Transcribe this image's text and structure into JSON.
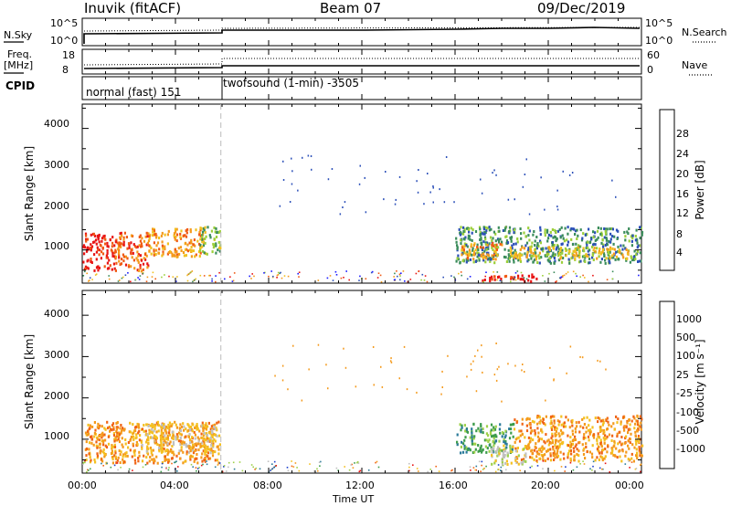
{
  "header": {
    "station": "Inuvik (fitACF)",
    "beam": "Beam 07",
    "date": "09/Dec/2019"
  },
  "panels": {
    "nsky": {
      "label": "N.Sky",
      "ticks": [
        "10^5",
        "10^0"
      ],
      "right_label": "N.Search",
      "right_ticks": [
        "10^5",
        "10^0"
      ]
    },
    "freq": {
      "label_line1": "Freq.",
      "label_line2": "[MHz]",
      "ticks": [
        "18",
        "8"
      ],
      "right_label": "Nave",
      "right_ticks": [
        "60",
        "0"
      ]
    },
    "cpid": {
      "label": "CPID",
      "segments": [
        "normal (fast) 151",
        "twofsound (1-min) -3505"
      ]
    }
  },
  "chart_data": [
    {
      "type": "heatmap",
      "name": "power",
      "ylabel": "Slant Range [km]",
      "xlabel": "",
      "ylim": [
        180,
        4600
      ],
      "yticks": [
        "1000",
        "2000",
        "3000",
        "4000"
      ],
      "colorbar": {
        "label": "Power [dB]",
        "ticks": [
          "4",
          "8",
          "12",
          "16",
          "20",
          "24",
          "28"
        ],
        "colors": [
          "#1a1aff",
          "#2b4fb8",
          "#3a8c5a",
          "#9ccf3a",
          "#f0c020",
          "#f49a1c",
          "#f05a14",
          "#e81414"
        ]
      },
      "regions": [
        {
          "t0": 0.0,
          "t1": 1.4,
          "r0": 500,
          "r1": 1450,
          "level": 7
        },
        {
          "t0": 1.4,
          "t1": 2.8,
          "r0": 500,
          "r1": 1450,
          "level": 6
        },
        {
          "t0": 2.8,
          "t1": 5.2,
          "r0": 850,
          "r1": 1550,
          "level": 5
        },
        {
          "t0": 5.0,
          "t1": 5.9,
          "r0": 900,
          "r1": 1600,
          "level": 3
        },
        {
          "t0": 16.0,
          "t1": 24.0,
          "r0": 700,
          "r1": 1600,
          "level": 2
        },
        {
          "t0": 16.2,
          "t1": 18.0,
          "r0": 800,
          "r1": 1200,
          "level": 5
        },
        {
          "t0": 18.3,
          "t1": 23.4,
          "r0": 800,
          "r1": 1100,
          "level": 4
        },
        {
          "t0": 17.0,
          "t1": 19.5,
          "r0": 250,
          "r1": 420,
          "level": 7
        }
      ]
    },
    {
      "type": "heatmap",
      "name": "velocity",
      "ylabel": "Slant Range [km]",
      "xlabel": "Time UT",
      "xticks": [
        "00:00",
        "04:00",
        "08:00",
        "12:00",
        "16:00",
        "20:00",
        "00:00"
      ],
      "xlim": [
        0,
        24
      ],
      "ylim": [
        180,
        4600
      ],
      "yticks": [
        "1000",
        "2000",
        "3000",
        "4000"
      ],
      "colorbar": {
        "label": "Velocity [m s⁻¹]",
        "ticks": [
          "1000",
          "500",
          "100",
          "25",
          "-25",
          "-100",
          "-500",
          "-1000"
        ],
        "colors": [
          "#1a3fcc",
          "#2a7a9a",
          "#3c9c4a",
          "#9ed04a",
          "#c0c0c0",
          "#f4c020",
          "#f49a1c",
          "#f06414",
          "#e81414"
        ]
      },
      "regions": [
        {
          "t0": 0.0,
          "t1": 5.9,
          "r0": 450,
          "r1": 1450,
          "level": 6
        },
        {
          "t0": 2.5,
          "t1": 5.8,
          "r0": 700,
          "r1": 1400,
          "level": 5
        },
        {
          "t0": 16.0,
          "t1": 18.5,
          "r0": 700,
          "r1": 1400,
          "level": 2
        },
        {
          "t0": 18.5,
          "t1": 24.0,
          "r0": 500,
          "r1": 1600,
          "level": 6
        },
        {
          "t0": 17.5,
          "t1": 19.0,
          "r0": 400,
          "r1": 900,
          "level": 4
        }
      ]
    }
  ]
}
